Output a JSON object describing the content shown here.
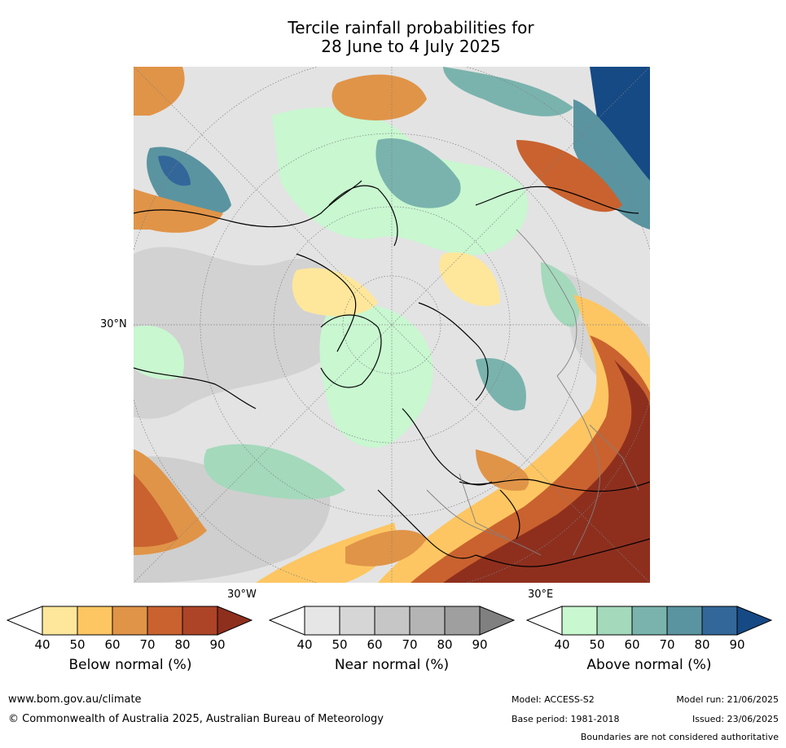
{
  "title_line1": "Tercile rainfall probabilities for",
  "title_line2": "28 June to 4 July 2025",
  "map": {
    "lat_label": "30°N",
    "lon_labels": [
      "30°W",
      "30°E"
    ],
    "ocean_color": "#ffffff",
    "coast_color": "#000000",
    "border_color": "#808080"
  },
  "colorbars": [
    {
      "label": "Below normal (%)",
      "ticks": [
        "40",
        "50",
        "60",
        "70",
        "80",
        "90"
      ],
      "colors": [
        "#ffffff",
        "#fee79b",
        "#fdc662",
        "#e09448",
        "#c9622f",
        "#ad4427",
        "#8e2f1e"
      ]
    },
    {
      "label": "Near normal (%)",
      "ticks": [
        "40",
        "50",
        "60",
        "70",
        "80",
        "90"
      ],
      "colors": [
        "#ffffff",
        "#e6e6e6",
        "#d6d6d6",
        "#c6c6c6",
        "#b4b4b4",
        "#9f9f9f",
        "#808080"
      ]
    },
    {
      "label": "Above normal (%)",
      "ticks": [
        "40",
        "50",
        "60",
        "70",
        "80",
        "90"
      ],
      "colors": [
        "#ffffff",
        "#c8f7d0",
        "#a4d9bc",
        "#7ab3ad",
        "#5a94a0",
        "#33679a",
        "#164a85"
      ]
    }
  ],
  "footer": {
    "website": "www.bom.gov.au/climate",
    "copyright": "© Commonwealth of Australia 2025, Australian Bureau of Meteorology",
    "model": "Model: ACCESS-S2",
    "base_period": "Base period: 1981-2018",
    "model_run": "Model run: 21/06/2025",
    "issued": "Issued: 23/06/2025",
    "disclaimer": "Boundaries are not considered authoritative"
  }
}
